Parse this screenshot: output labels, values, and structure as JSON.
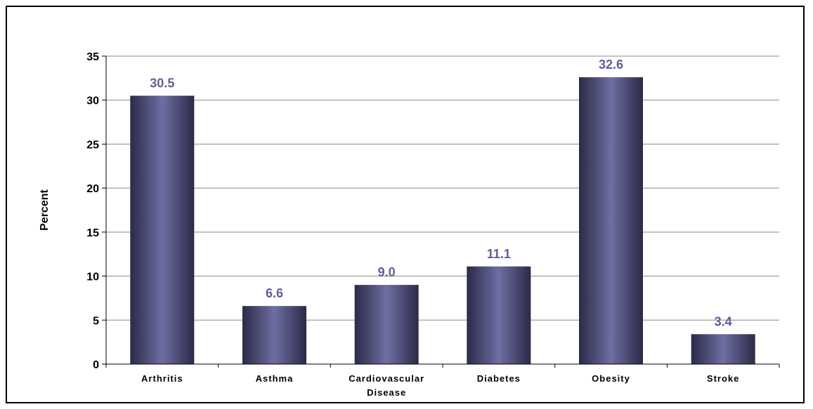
{
  "chart_data": {
    "type": "bar",
    "categories": [
      [
        "Arthritis"
      ],
      [
        "Asthma"
      ],
      [
        "Cardiovascular",
        "Disease"
      ],
      [
        "Diabetes"
      ],
      [
        "Obesity"
      ],
      [
        "Stroke"
      ]
    ],
    "values": [
      30.5,
      6.6,
      9.0,
      11.1,
      32.6,
      3.4
    ],
    "value_labels": [
      "30.5",
      "6.6",
      "9.0",
      "11.1",
      "32.6",
      "3.4"
    ],
    "title": "",
    "xlabel": "",
    "ylabel": "Percent",
    "ylim": [
      0,
      35
    ],
    "yticks": [
      0,
      5,
      10,
      15,
      20,
      25,
      30,
      35
    ],
    "grid": true,
    "legend": "none",
    "colors": {
      "bar_edge": "#2a2a48",
      "bar_center": "#6e6ea2",
      "data_label": "#5f5f96",
      "grid": "#888888",
      "axis": "#000000"
    }
  }
}
